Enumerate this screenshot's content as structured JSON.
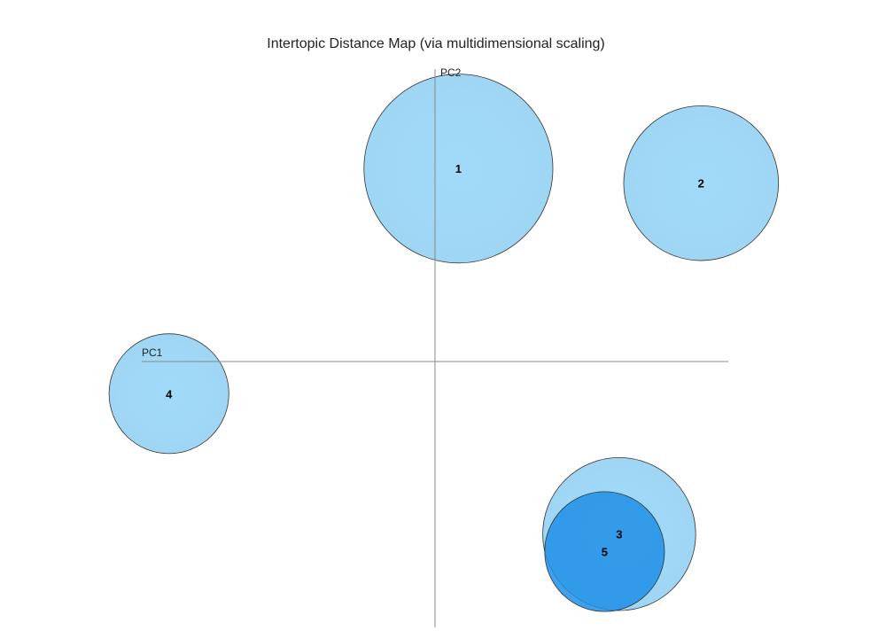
{
  "chart_data": {
    "type": "scatter",
    "title": "Intertopic Distance Map (via multidimensional scaling)",
    "xlabel": "PC1",
    "ylabel": "PC2",
    "xlim": [
      -100,
      100
    ],
    "ylim": [
      -100,
      100
    ],
    "grid": false,
    "legend": "none",
    "colors": {
      "bubble": "#7ec8f0",
      "bubble_selected": "#1e90e6",
      "stroke": "#333333",
      "axis": "#888888"
    },
    "topics": [
      {
        "label": "1",
        "x": 8,
        "y": 66,
        "size": 20.5,
        "selected": false
      },
      {
        "label": "2",
        "x": 91,
        "y": 61,
        "size": 16.8,
        "selected": false
      },
      {
        "label": "3",
        "x": 63,
        "y": -59,
        "size": 16.6,
        "selected": false
      },
      {
        "label": "4",
        "x": -91,
        "y": -11,
        "size": 13.0,
        "selected": false
      },
      {
        "label": "5",
        "x": 58,
        "y": -65,
        "size": 13.0,
        "selected": true
      }
    ]
  }
}
